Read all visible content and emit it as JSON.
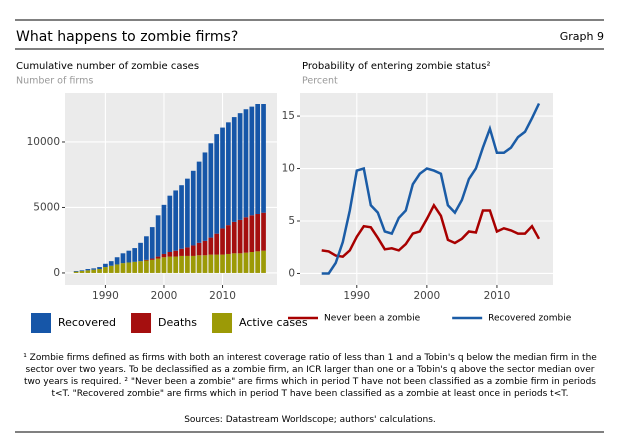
{
  "header": {
    "title": "What happens to zombie firms?",
    "label": "Graph 9"
  },
  "chart_data": [
    {
      "type": "bar",
      "stacked": true,
      "title": "Cumulative number of zombie cases",
      "subtitle": "Number of firms",
      "x": [
        1985,
        1986,
        1987,
        1988,
        1989,
        1990,
        1991,
        1992,
        1993,
        1994,
        1995,
        1996,
        1997,
        1998,
        1999,
        2000,
        2001,
        2002,
        2003,
        2004,
        2005,
        2006,
        2007,
        2008,
        2009,
        2010,
        2011,
        2012,
        2013,
        2014,
        2015,
        2016,
        2017
      ],
      "series": [
        {
          "name": "Recovered",
          "color": "#1656a8",
          "values": [
            50,
            50,
            100,
            100,
            150,
            250,
            350,
            550,
            750,
            900,
            1050,
            1400,
            1800,
            2400,
            3150,
            3750,
            4300,
            4600,
            4850,
            5250,
            5700,
            6200,
            6750,
            7200,
            7600,
            7700,
            7850,
            8000,
            8150,
            8250,
            8300,
            8400,
            8300
          ]
        },
        {
          "name": "Deaths",
          "color": "#a50f0f",
          "values": [
            0,
            0,
            0,
            0,
            0,
            0,
            0,
            0,
            0,
            0,
            0,
            0,
            50,
            100,
            150,
            250,
            350,
            450,
            550,
            650,
            800,
            950,
            1100,
            1300,
            1600,
            2000,
            2200,
            2400,
            2550,
            2700,
            2800,
            2850,
            2900
          ]
        },
        {
          "name": "Active cases",
          "color": "#9c9a06",
          "values": [
            100,
            150,
            200,
            250,
            300,
            450,
            550,
            650,
            750,
            800,
            850,
            900,
            950,
            1000,
            1100,
            1200,
            1250,
            1250,
            1300,
            1300,
            1300,
            1350,
            1350,
            1400,
            1400,
            1400,
            1450,
            1500,
            1500,
            1550,
            1600,
            1650,
            1700
          ]
        }
      ],
      "xlim": [
        1983.1,
        2019.3
      ],
      "xticks": [
        1990,
        2000,
        2010
      ],
      "ylim": [
        -920,
        13740
      ],
      "yticks": [
        0,
        5000,
        10000
      ],
      "grid": true,
      "legend": "bottom"
    },
    {
      "type": "line",
      "title": "Probability of entering zombie status²",
      "subtitle": "Percent",
      "x": [
        1985,
        1986,
        1987,
        1988,
        1989,
        1990,
        1991,
        1992,
        1993,
        1994,
        1995,
        1996,
        1997,
        1998,
        1999,
        2000,
        2001,
        2002,
        2003,
        2004,
        2005,
        2006,
        2007,
        2008,
        2009,
        2010,
        2011,
        2012,
        2013,
        2014,
        2015,
        2016
      ],
      "series": [
        {
          "name": "Never been a zombie",
          "color": "#a80000",
          "values": [
            2.2,
            2.1,
            1.7,
            1.6,
            2.2,
            3.5,
            4.5,
            4.4,
            3.4,
            2.3,
            2.4,
            2.2,
            2.8,
            3.8,
            4.0,
            5.2,
            6.5,
            5.5,
            3.2,
            2.9,
            3.3,
            4.0,
            3.9,
            6.0,
            6.0,
            4.0,
            4.3,
            4.1,
            3.8,
            3.8,
            4.5,
            3.3
          ]
        },
        {
          "name": "Recovered zombie",
          "color": "#1b5ca6",
          "values": [
            0,
            0,
            1,
            3,
            6,
            9.8,
            10,
            6.5,
            5.8,
            4,
            3.8,
            5.3,
            6,
            8.5,
            9.5,
            10,
            9.8,
            9.5,
            6.5,
            5.8,
            7,
            9,
            10,
            12,
            13.8,
            11.5,
            11.5,
            12,
            13,
            13.5,
            14.8,
            16.2
          ]
        }
      ],
      "xlim": [
        1981.9,
        2018
      ],
      "xticks": [
        1990,
        2000,
        2010
      ],
      "ylim": [
        -1.1,
        17.2
      ],
      "yticks": [
        0,
        5,
        10,
        15
      ],
      "grid": true,
      "legend": "bottom"
    }
  ],
  "footnote": {
    "text": "¹ Zombie firms defined as firms with both an interest coverage ratio of less than 1 and a Tobin's q below the median firm in the sector over two years. To be declassified as a zombie firm, an ICR larger than one or a Tobin's q above the sector median over two years is required. ² \"Never been a zombie\" are firms which in period T have not been classified as a zombie firm in periods t<T. \"Recovered zombie\" are firms which in period T have been classified as a zombie at least once in periods t<T.",
    "sources": "Sources: Datastream Worldscope; authors' calculations."
  }
}
